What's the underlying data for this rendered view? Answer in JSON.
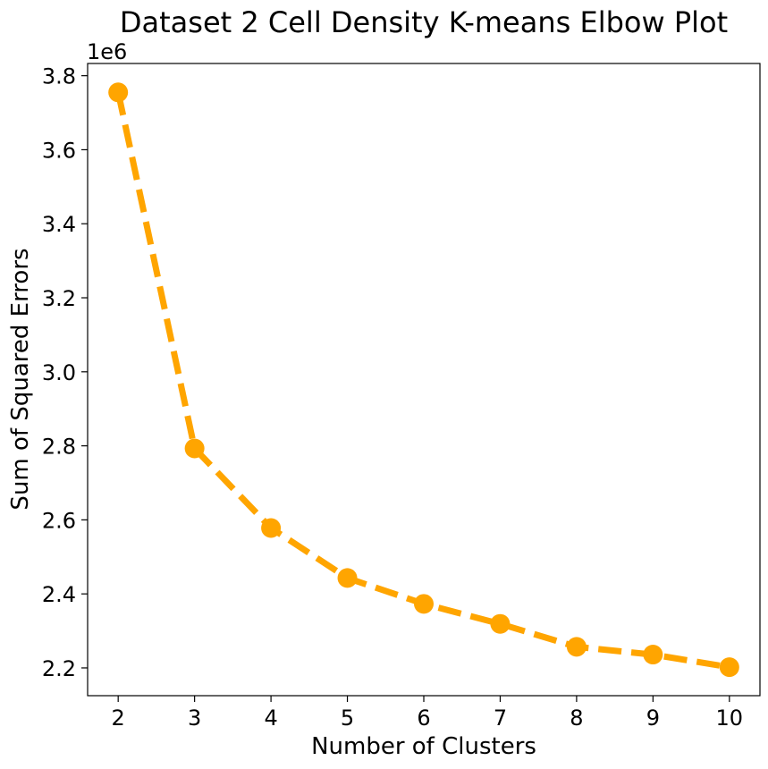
{
  "chart_data": {
    "type": "line",
    "title": "Dataset 2 Cell Density K-means Elbow Plot",
    "xlabel": "Number of Clusters",
    "ylabel": "Sum of Squared Errors",
    "y_offset_label": "1e6",
    "x": [
      2,
      3,
      4,
      5,
      6,
      7,
      8,
      9,
      10
    ],
    "series": [
      {
        "values": [
          3755000,
          2793000,
          2578000,
          2443000,
          2373000,
          2319000,
          2257000,
          2236000,
          2202000
        ],
        "color": "#FFA500",
        "line_style": "dashed",
        "marker": "circle"
      }
    ],
    "xlim": [
      1.6,
      10.4
    ],
    "ylim": [
      2125000,
      3833000
    ],
    "xticks": [
      2,
      3,
      4,
      5,
      6,
      7,
      8,
      9,
      10
    ],
    "xtick_labels": [
      "2",
      "3",
      "4",
      "5",
      "6",
      "7",
      "8",
      "9",
      "10"
    ],
    "yticks": [
      2200000,
      2400000,
      2600000,
      2800000,
      3000000,
      3200000,
      3400000,
      3600000,
      3800000
    ],
    "ytick_labels": [
      "2.2",
      "2.4",
      "2.6",
      "2.8",
      "3.0",
      "3.2",
      "3.4",
      "3.6",
      "3.8"
    ],
    "grid": false,
    "legend": false
  }
}
